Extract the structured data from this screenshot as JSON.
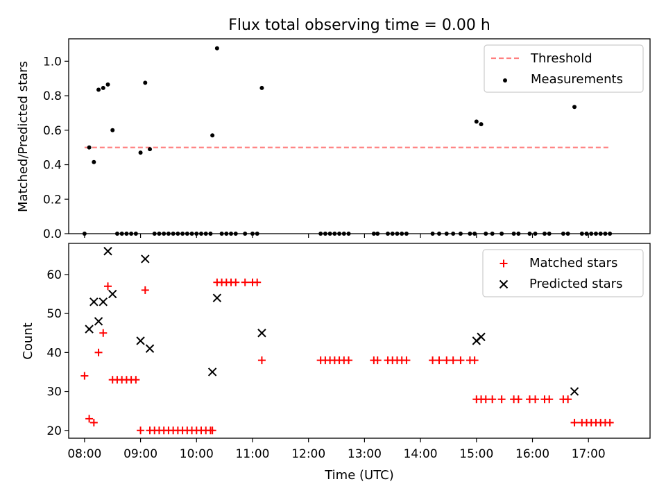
{
  "title": "Flux total observing time = 0.00 h",
  "colors": {
    "threshold": "#ff7f7f",
    "measurements": "#000000",
    "matched": "#ff0000",
    "predicted": "#000000"
  },
  "chart_data": [
    {
      "type": "scatter",
      "ylabel": "Matched/Predicted stars",
      "ylim": [
        0,
        1.13
      ],
      "yticks": [
        0.0,
        0.2,
        0.4,
        0.6,
        0.8,
        1.0
      ],
      "yticklabels": [
        "0.0",
        "0.2",
        "0.4",
        "0.6",
        "0.8",
        "1.0"
      ],
      "xlim": [
        "07:43",
        "18:06"
      ],
      "legend": "top-right",
      "threshold": {
        "label": "Threshold",
        "value": 0.5,
        "x_range": [
          "08:00",
          "17:22"
        ]
      },
      "measurements": {
        "label": "Measurements",
        "points": [
          [
            "08:00",
            0.0
          ],
          [
            "08:05",
            0.5
          ],
          [
            "08:10",
            0.415
          ],
          [
            "08:15",
            0.835
          ],
          [
            "08:20",
            0.845
          ],
          [
            "08:25",
            0.865
          ],
          [
            "08:30",
            0.6
          ],
          [
            "08:35",
            0.0
          ],
          [
            "08:40",
            0.0
          ],
          [
            "08:45",
            0.0
          ],
          [
            "08:50",
            0.0
          ],
          [
            "08:55",
            0.0
          ],
          [
            "09:00",
            0.47
          ],
          [
            "09:05",
            0.875
          ],
          [
            "09:10",
            0.49
          ],
          [
            "09:15",
            0.0
          ],
          [
            "09:20",
            0.0
          ],
          [
            "09:25",
            0.0
          ],
          [
            "09:30",
            0.0
          ],
          [
            "09:35",
            0.0
          ],
          [
            "09:40",
            0.0
          ],
          [
            "09:45",
            0.0
          ],
          [
            "09:50",
            0.0
          ],
          [
            "09:55",
            0.0
          ],
          [
            "10:00",
            0.0
          ],
          [
            "10:05",
            0.0
          ],
          [
            "10:10",
            0.0
          ],
          [
            "10:15",
            0.0
          ],
          [
            "10:17",
            0.57
          ],
          [
            "10:22",
            1.075
          ],
          [
            "10:27",
            0.0
          ],
          [
            "10:32",
            0.0
          ],
          [
            "10:37",
            0.0
          ],
          [
            "10:42",
            0.0
          ],
          [
            "10:52",
            0.0
          ],
          [
            "11:00",
            0.0
          ],
          [
            "11:05",
            0.0
          ],
          [
            "11:10",
            0.845
          ],
          [
            "12:13",
            0.0
          ],
          [
            "12:18",
            0.0
          ],
          [
            "12:23",
            0.0
          ],
          [
            "12:28",
            0.0
          ],
          [
            "12:33",
            0.0
          ],
          [
            "12:38",
            0.0
          ],
          [
            "12:43",
            0.0
          ],
          [
            "13:10",
            0.0
          ],
          [
            "13:14",
            0.0
          ],
          [
            "13:25",
            0.0
          ],
          [
            "13:30",
            0.0
          ],
          [
            "13:35",
            0.0
          ],
          [
            "13:40",
            0.0
          ],
          [
            "13:45",
            0.0
          ],
          [
            "14:13",
            0.0
          ],
          [
            "14:20",
            0.0
          ],
          [
            "14:28",
            0.0
          ],
          [
            "14:35",
            0.0
          ],
          [
            "14:43",
            0.0
          ],
          [
            "14:53",
            0.0
          ],
          [
            "14:58",
            0.0
          ],
          [
            "15:00",
            0.65
          ],
          [
            "15:05",
            0.635
          ],
          [
            "15:10",
            0.0
          ],
          [
            "15:17",
            0.0
          ],
          [
            "15:27",
            0.0
          ],
          [
            "15:40",
            0.0
          ],
          [
            "15:45",
            0.0
          ],
          [
            "15:57",
            0.0
          ],
          [
            "16:03",
            0.0
          ],
          [
            "16:13",
            0.0
          ],
          [
            "16:18",
            0.0
          ],
          [
            "16:33",
            0.0
          ],
          [
            "16:38",
            0.0
          ],
          [
            "16:45",
            0.735
          ],
          [
            "16:53",
            0.0
          ],
          [
            "16:58",
            0.0
          ],
          [
            "17:03",
            0.0
          ],
          [
            "17:08",
            0.0
          ],
          [
            "17:13",
            0.0
          ],
          [
            "17:18",
            0.0
          ],
          [
            "17:23",
            0.0
          ]
        ]
      }
    },
    {
      "type": "scatter",
      "xlabel": "Time (UTC)",
      "ylabel": "Count",
      "ylim": [
        18,
        68
      ],
      "yticks": [
        20,
        30,
        40,
        50,
        60
      ],
      "yticklabels": [
        "20",
        "30",
        "40",
        "50",
        "60"
      ],
      "xlim": [
        "07:43",
        "18:06"
      ],
      "xticks": [
        "08:00",
        "09:00",
        "10:00",
        "11:00",
        "12:00",
        "13:00",
        "14:00",
        "15:00",
        "16:00",
        "17:00"
      ],
      "xticklabels": [
        "08:00",
        "09:00",
        "10:00",
        "11:00",
        "12:00",
        "13:00",
        "14:00",
        "15:00",
        "16:00",
        "17:00"
      ],
      "legend": "top-right",
      "series": [
        {
          "name": "Matched stars",
          "marker": "plus",
          "points": [
            [
              "08:00",
              34
            ],
            [
              "08:05",
              23
            ],
            [
              "08:10",
              22
            ],
            [
              "08:15",
              40
            ],
            [
              "08:20",
              45
            ],
            [
              "08:25",
              57
            ],
            [
              "08:30",
              33
            ],
            [
              "08:35",
              33
            ],
            [
              "08:40",
              33
            ],
            [
              "08:45",
              33
            ],
            [
              "08:50",
              33
            ],
            [
              "08:55",
              33
            ],
            [
              "09:00",
              20
            ],
            [
              "09:05",
              56
            ],
            [
              "09:10",
              20
            ],
            [
              "09:15",
              20
            ],
            [
              "09:20",
              20
            ],
            [
              "09:25",
              20
            ],
            [
              "09:30",
              20
            ],
            [
              "09:35",
              20
            ],
            [
              "09:40",
              20
            ],
            [
              "09:45",
              20
            ],
            [
              "09:50",
              20
            ],
            [
              "09:55",
              20
            ],
            [
              "10:00",
              20
            ],
            [
              "10:05",
              20
            ],
            [
              "10:10",
              20
            ],
            [
              "10:15",
              20
            ],
            [
              "10:17",
              20
            ],
            [
              "10:22",
              58
            ],
            [
              "10:27",
              58
            ],
            [
              "10:32",
              58
            ],
            [
              "10:37",
              58
            ],
            [
              "10:42",
              58
            ],
            [
              "10:52",
              58
            ],
            [
              "11:00",
              58
            ],
            [
              "11:05",
              58
            ],
            [
              "11:10",
              38
            ],
            [
              "12:13",
              38
            ],
            [
              "12:18",
              38
            ],
            [
              "12:23",
              38
            ],
            [
              "12:28",
              38
            ],
            [
              "12:33",
              38
            ],
            [
              "12:38",
              38
            ],
            [
              "12:43",
              38
            ],
            [
              "13:10",
              38
            ],
            [
              "13:14",
              38
            ],
            [
              "13:25",
              38
            ],
            [
              "13:30",
              38
            ],
            [
              "13:35",
              38
            ],
            [
              "13:40",
              38
            ],
            [
              "13:45",
              38
            ],
            [
              "14:13",
              38
            ],
            [
              "14:20",
              38
            ],
            [
              "14:28",
              38
            ],
            [
              "14:35",
              38
            ],
            [
              "14:43",
              38
            ],
            [
              "14:53",
              38
            ],
            [
              "14:58",
              38
            ],
            [
              "15:00",
              28
            ],
            [
              "15:05",
              28
            ],
            [
              "15:10",
              28
            ],
            [
              "15:17",
              28
            ],
            [
              "15:27",
              28
            ],
            [
              "15:40",
              28
            ],
            [
              "15:45",
              28
            ],
            [
              "15:57",
              28
            ],
            [
              "16:03",
              28
            ],
            [
              "16:13",
              28
            ],
            [
              "16:18",
              28
            ],
            [
              "16:33",
              28
            ],
            [
              "16:38",
              28
            ],
            [
              "16:45",
              22
            ],
            [
              "16:53",
              22
            ],
            [
              "16:58",
              22
            ],
            [
              "17:03",
              22
            ],
            [
              "17:08",
              22
            ],
            [
              "17:13",
              22
            ],
            [
              "17:18",
              22
            ],
            [
              "17:23",
              22
            ]
          ]
        },
        {
          "name": "Predicted stars",
          "marker": "x",
          "points": [
            [
              "08:05",
              46
            ],
            [
              "08:10",
              53
            ],
            [
              "08:15",
              48
            ],
            [
              "08:20",
              53
            ],
            [
              "08:25",
              66
            ],
            [
              "08:30",
              55
            ],
            [
              "09:00",
              43
            ],
            [
              "09:05",
              64
            ],
            [
              "09:10",
              41
            ],
            [
              "10:17",
              35
            ],
            [
              "10:22",
              54
            ],
            [
              "11:10",
              45
            ],
            [
              "15:00",
              43
            ],
            [
              "15:05",
              44
            ],
            [
              "16:45",
              30
            ]
          ]
        }
      ]
    }
  ]
}
